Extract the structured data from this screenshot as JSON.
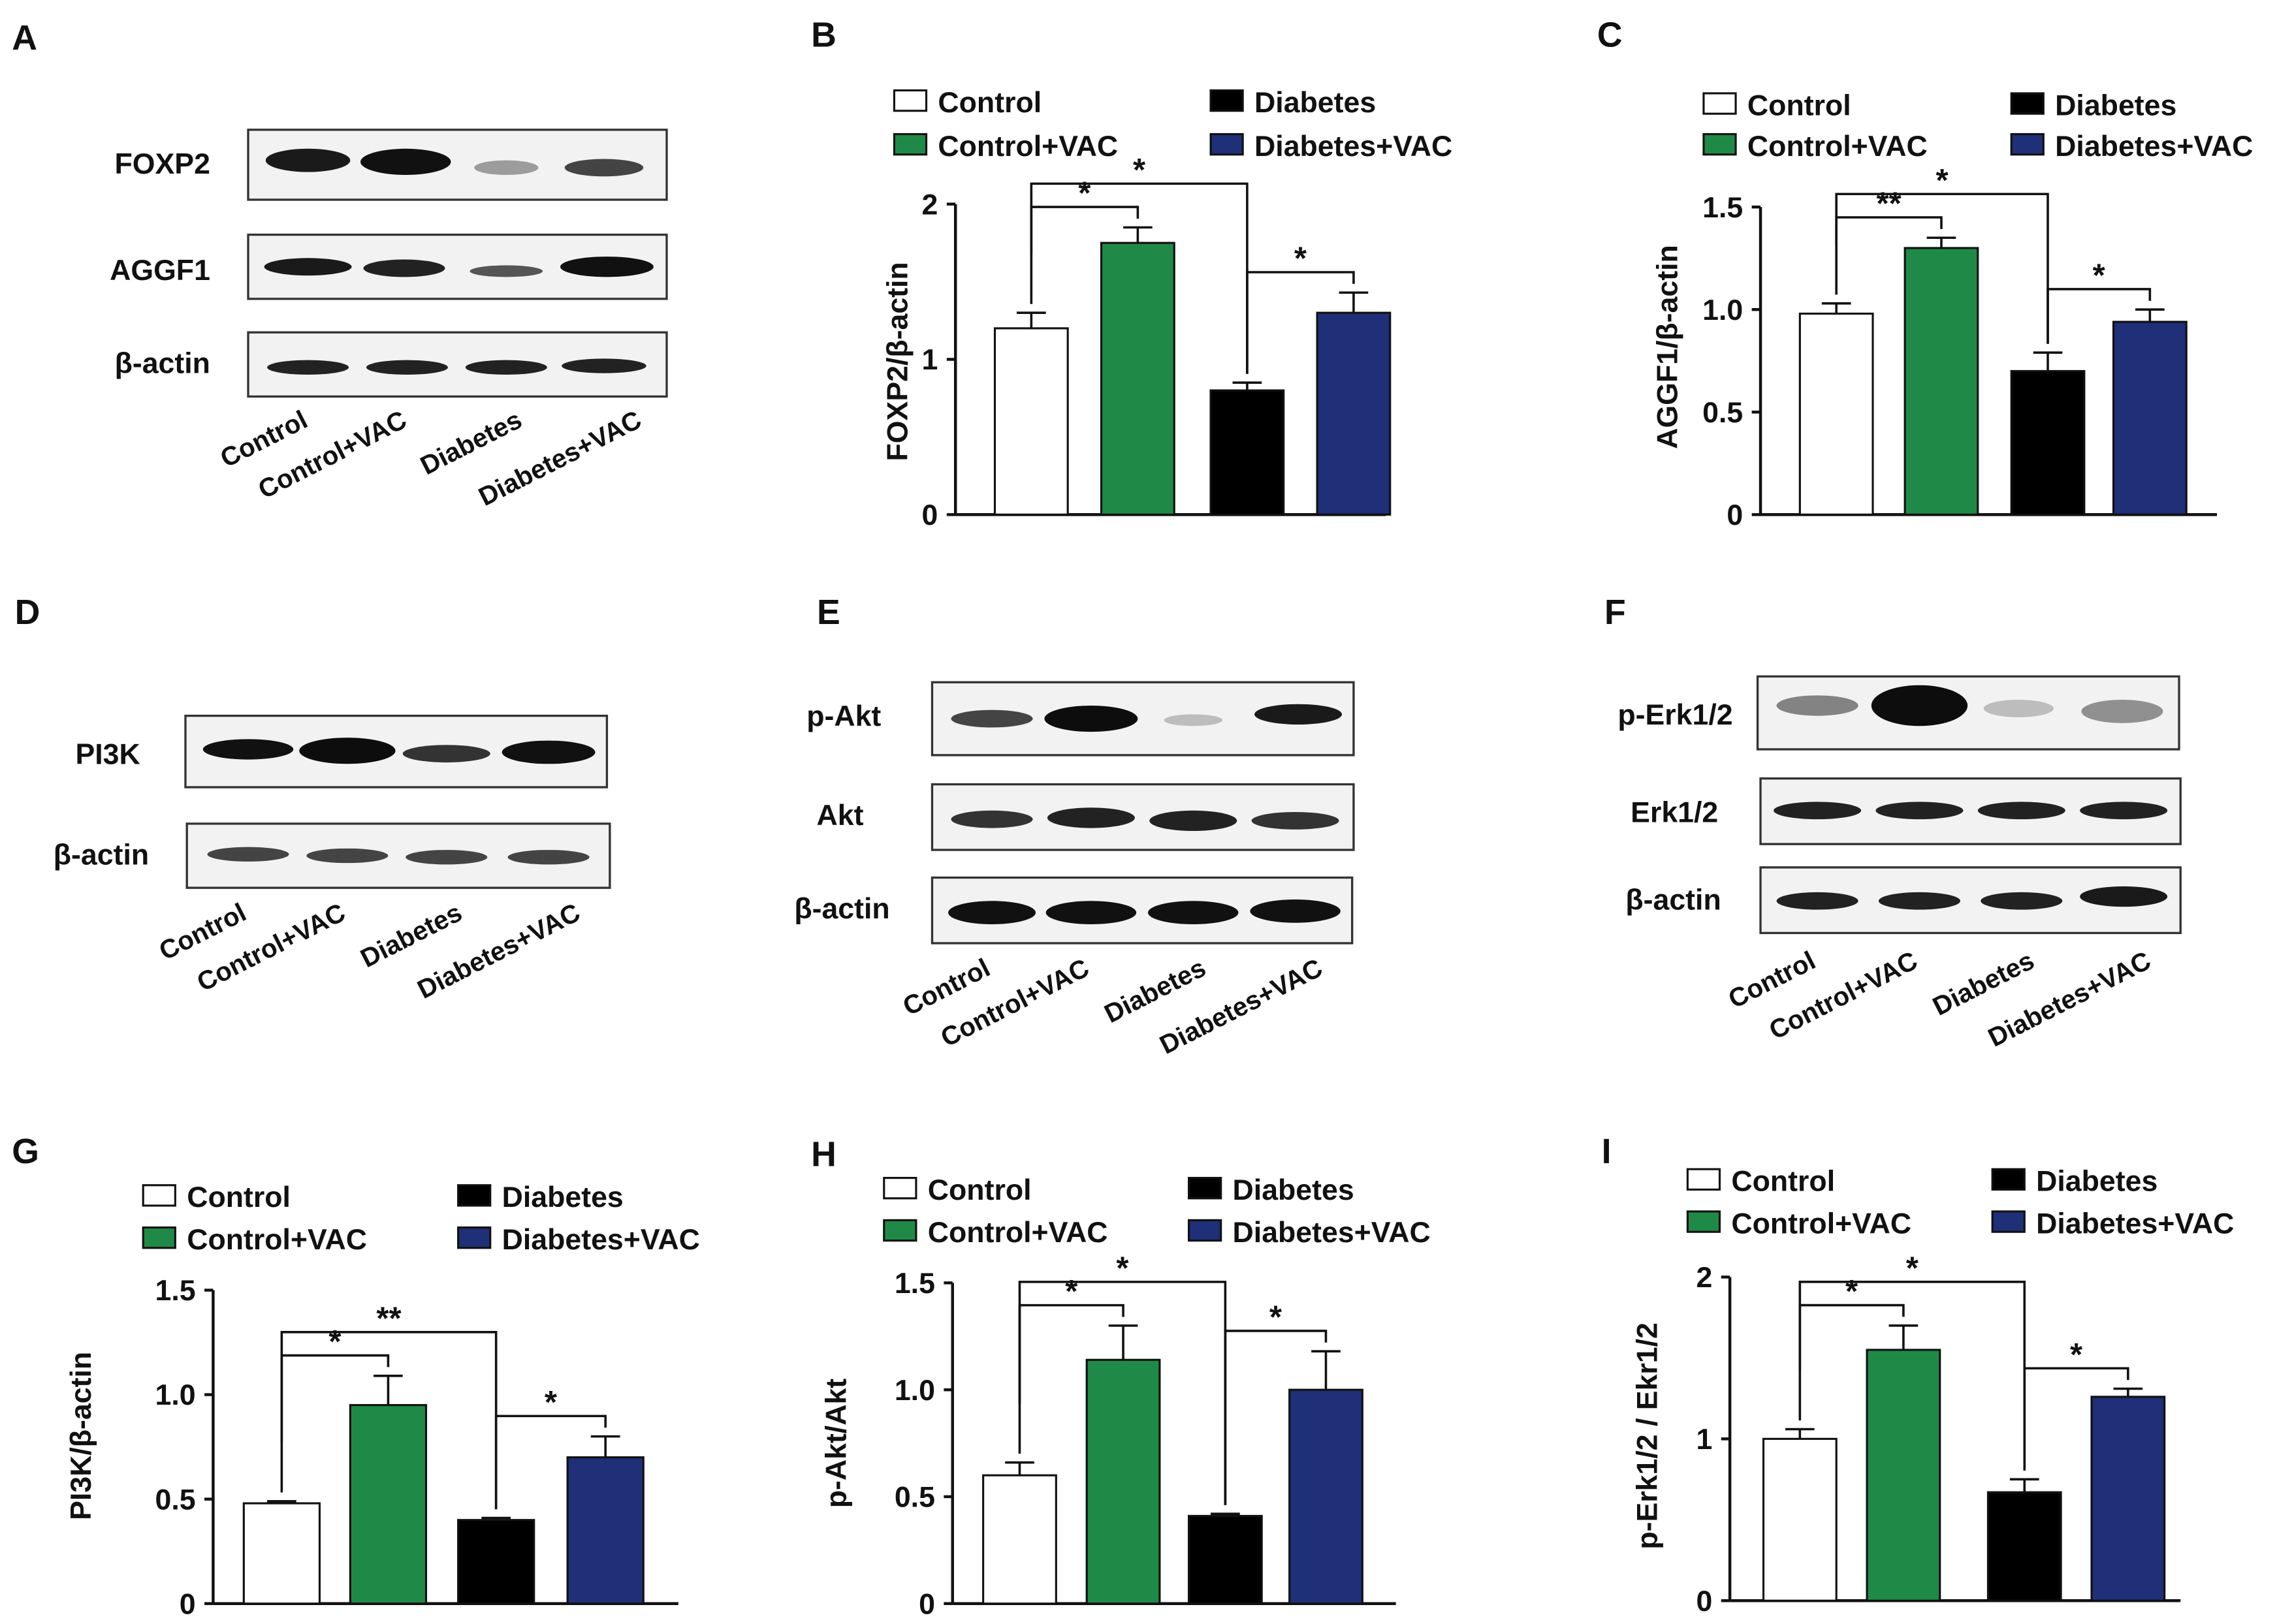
{
  "colors": {
    "control": "#ffffff",
    "control_vac": "#1f8a47",
    "diabetes": "#000000",
    "diabetes_vac": "#1f2f78"
  },
  "blots": [
    {
      "panel": "A",
      "rows": [
        "FOXP2",
        "AGGF1",
        "β-actin"
      ],
      "lanes": [
        "Control",
        "Control+VAC",
        "Diabetes",
        "Diabetes+VAC"
      ]
    },
    {
      "panel": "D",
      "rows": [
        "PI3K",
        "β-actin"
      ],
      "lanes": [
        "Control",
        "Control+VAC",
        "Diabetes",
        "Diabetes+VAC"
      ]
    },
    {
      "panel": "E",
      "rows": [
        "p-Akt",
        "Akt",
        "β-actin"
      ],
      "lanes": [
        "Control",
        "Control+VAC",
        "Diabetes",
        "Diabetes+VAC"
      ]
    },
    {
      "panel": "F",
      "rows": [
        "p-Erk1/2",
        "Erk1/2",
        "β-actin"
      ],
      "lanes": [
        "Control",
        "Control+VAC",
        "Diabetes",
        "Diabetes+VAC"
      ]
    }
  ],
  "chart_data": [
    {
      "panel": "B",
      "type": "bar",
      "ylabel": "FOXP2/β-actin",
      "ylim": [
        0,
        2
      ],
      "yticks": [
        "0",
        "1",
        "2"
      ],
      "series": [
        {
          "name": "Control",
          "value": 1.2,
          "error": 0.1
        },
        {
          "name": "Control+VAC",
          "value": 1.75,
          "error": 0.1
        },
        {
          "name": "Diabetes",
          "value": 0.8,
          "error": 0.05
        },
        {
          "name": "Diabetes+VAC",
          "value": 1.3,
          "error": 0.13
        }
      ],
      "significance": [
        {
          "from": 0,
          "to": 2,
          "label": "*"
        },
        {
          "from": 0,
          "to": 1,
          "label": "*"
        },
        {
          "from": 2,
          "to": 3,
          "label": "*"
        }
      ]
    },
    {
      "panel": "C",
      "type": "bar",
      "ylabel": "AGGF1/β-actin",
      "ylim": [
        0,
        1.5
      ],
      "yticks": [
        "0",
        "0.5",
        "1.0",
        "1.5"
      ],
      "series": [
        {
          "name": "Control",
          "value": 0.98,
          "error": 0.05
        },
        {
          "name": "Control+VAC",
          "value": 1.3,
          "error": 0.05
        },
        {
          "name": "Diabetes",
          "value": 0.7,
          "error": 0.09
        },
        {
          "name": "Diabetes+VAC",
          "value": 0.94,
          "error": 0.06
        }
      ],
      "significance": [
        {
          "from": 0,
          "to": 2,
          "label": "*"
        },
        {
          "from": 0,
          "to": 1,
          "label": "**"
        },
        {
          "from": 2,
          "to": 3,
          "label": "*"
        }
      ]
    },
    {
      "panel": "G",
      "type": "bar",
      "ylabel": "PI3K/β-actin",
      "ylim": [
        0,
        1.5
      ],
      "yticks": [
        "0",
        "0.5",
        "1.0",
        "1.5"
      ],
      "series": [
        {
          "name": "Control",
          "value": 0.48,
          "error": 0.01
        },
        {
          "name": "Control+VAC",
          "value": 0.95,
          "error": 0.14
        },
        {
          "name": "Diabetes",
          "value": 0.4,
          "error": 0.01
        },
        {
          "name": "Diabetes+VAC",
          "value": 0.7,
          "error": 0.1
        }
      ],
      "significance": [
        {
          "from": 0,
          "to": 2,
          "label": "**"
        },
        {
          "from": 0,
          "to": 1,
          "label": "*"
        },
        {
          "from": 2,
          "to": 3,
          "label": "*"
        }
      ]
    },
    {
      "panel": "H",
      "type": "bar",
      "ylabel": "p-Akt/Akt",
      "ylim": [
        0,
        1.5
      ],
      "yticks": [
        "0",
        "0.5",
        "1.0",
        "1.5"
      ],
      "series": [
        {
          "name": "Control",
          "value": 0.6,
          "error": 0.06
        },
        {
          "name": "Control+VAC",
          "value": 1.14,
          "error": 0.16
        },
        {
          "name": "Diabetes",
          "value": 0.41,
          "error": 0.01
        },
        {
          "name": "Diabetes+VAC",
          "value": 1.0,
          "error": 0.18
        }
      ],
      "significance": [
        {
          "from": 0,
          "to": 2,
          "label": "*"
        },
        {
          "from": 0,
          "to": 1,
          "label": "*"
        },
        {
          "from": 2,
          "to": 3,
          "label": "*"
        }
      ]
    },
    {
      "panel": "I",
      "type": "bar",
      "ylabel": "p-Erk1/2 / Ekr1/2",
      "ylim": [
        0,
        2
      ],
      "yticks": [
        "0",
        "1",
        "2"
      ],
      "series": [
        {
          "name": "Control",
          "value": 1.0,
          "error": 0.06
        },
        {
          "name": "Control+VAC",
          "value": 1.55,
          "error": 0.15
        },
        {
          "name": "Diabetes",
          "value": 0.67,
          "error": 0.08
        },
        {
          "name": "Diabetes+VAC",
          "value": 1.26,
          "error": 0.05
        }
      ],
      "significance": [
        {
          "from": 0,
          "to": 2,
          "label": "*"
        },
        {
          "from": 0,
          "to": 1,
          "label": "*"
        },
        {
          "from": 2,
          "to": 3,
          "label": "*"
        }
      ]
    }
  ]
}
